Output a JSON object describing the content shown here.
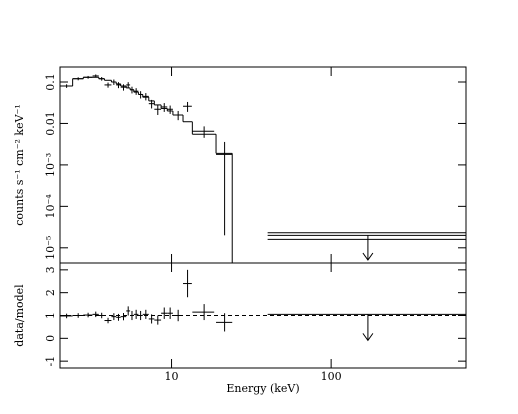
{
  "chart_data": [
    {
      "type": "spectrum",
      "y_label": "counts s⁻¹ cm⁻² keV⁻¹",
      "xlog": true,
      "ylog": true,
      "xlim": [
        2,
        700
      ],
      "xticks": [
        10,
        100
      ],
      "x_tick_labels": false,
      "ylim": [
        4.3e-06,
        0.23
      ],
      "yticks": [
        {
          "value": 1e-05,
          "label": "10⁻⁵"
        },
        {
          "value": 0.0001,
          "label": "10⁻⁴"
        },
        {
          "value": 0.001,
          "label": "10⁻³"
        },
        0.01,
        0.1
      ],
      "x": [
        2.2,
        2.6,
        3.0,
        3.35,
        3.65,
        4.0,
        4.35,
        4.65,
        5.0,
        5.35,
        5.65,
        6.0,
        6.4,
        6.9,
        7.5,
        8.2,
        9.0,
        9.8,
        11,
        12.6,
        16,
        21.5
      ],
      "xerr": [
        0.2,
        0.2,
        0.2,
        0.15,
        0.15,
        0.2,
        0.15,
        0.15,
        0.2,
        0.15,
        0.15,
        0.2,
        0.2,
        0.3,
        0.3,
        0.4,
        0.4,
        0.4,
        0.8,
        0.8,
        2.5,
        2.5
      ],
      "values": [
        0.08,
        0.12,
        0.13,
        0.14,
        0.12,
        0.085,
        0.1,
        0.085,
        0.075,
        0.085,
        0.065,
        0.06,
        0.05,
        0.045,
        0.03,
        0.022,
        0.025,
        0.022,
        0.016,
        0.026,
        0.0065,
        0.0018
      ],
      "errors": [
        0.008,
        0.01,
        0.01,
        0.012,
        0.012,
        0.012,
        0.015,
        0.014,
        0.013,
        0.014,
        0.012,
        0.011,
        0.01,
        0.009,
        0.007,
        0.006,
        0.006,
        0.005,
        0.004,
        0.007,
        0.002,
        0.00178
      ],
      "model": {
        "bins": [
          2,
          2.4,
          2.8,
          3.2,
          3.5,
          3.8,
          4.2,
          4.5,
          4.8,
          5.2,
          5.5,
          5.8,
          6.2,
          6.6,
          7.2,
          7.8,
          8.6,
          9.4,
          10.2,
          11.8,
          13.5,
          19,
          24,
          40,
          700
        ],
        "values": [
          0.08,
          0.12,
          0.13,
          0.13,
          0.12,
          0.11,
          0.1,
          0.09,
          0.08,
          0.072,
          0.065,
          0.057,
          0.05,
          0.043,
          0.035,
          0.028,
          0.023,
          0.02,
          0.016,
          0.011,
          0.0055,
          0.0019,
          null,
          2.3e-05
        ]
      },
      "upper_limit": {
        "x": 170,
        "x_low": 40,
        "x_high": 700,
        "value": 2e-05
      }
    },
    {
      "type": "ratio",
      "y_label": "data/model",
      "x_label": "Energy (keV)",
      "xlog": true,
      "ylog": false,
      "xlim": [
        2,
        700
      ],
      "xticks": [
        10,
        100
      ],
      "x_tick_labels": true,
      "ylim": [
        -1.3,
        3.3
      ],
      "yticks": [
        -1,
        0,
        1,
        2,
        3
      ],
      "reference": 1,
      "x": [
        2.2,
        2.6,
        3.0,
        3.35,
        3.65,
        4.0,
        4.35,
        4.65,
        5.0,
        5.35,
        5.65,
        6.0,
        6.4,
        6.9,
        7.5,
        8.2,
        9.0,
        9.8,
        11,
        12.6,
        16,
        21.5
      ],
      "xerr": [
        0.2,
        0.2,
        0.2,
        0.15,
        0.15,
        0.2,
        0.15,
        0.15,
        0.2,
        0.15,
        0.15,
        0.2,
        0.2,
        0.3,
        0.3,
        0.4,
        0.4,
        0.4,
        0.8,
        0.8,
        2.5,
        2.5
      ],
      "values": [
        0.98,
        1.0,
        1.02,
        1.05,
        1.0,
        0.78,
        0.95,
        0.92,
        0.95,
        1.2,
        1.0,
        1.05,
        1.0,
        1.05,
        0.85,
        0.8,
        1.1,
        1.1,
        1.0,
        2.4,
        1.15,
        0.7
      ],
      "errors": [
        0.1,
        0.1,
        0.1,
        0.12,
        0.12,
        0.12,
        0.15,
        0.15,
        0.16,
        0.2,
        0.2,
        0.2,
        0.2,
        0.2,
        0.2,
        0.2,
        0.25,
        0.25,
        0.25,
        0.6,
        0.35,
        0.4
      ],
      "upper_limit": {
        "x": 170,
        "x_low": 40,
        "x_high": 700,
        "value": 1.05
      }
    }
  ]
}
